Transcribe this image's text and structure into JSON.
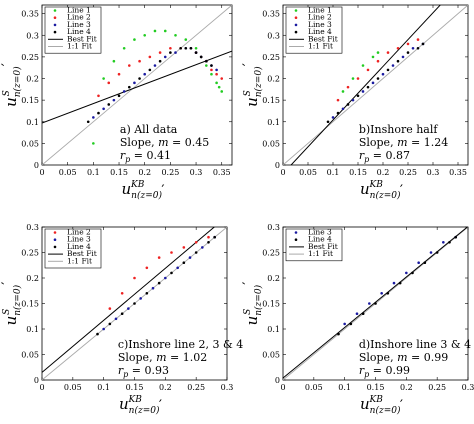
{
  "chart_data": [
    {
      "type": "scatter",
      "panel": "a",
      "xlim": [
        0,
        0.37
      ],
      "ylim": [
        0,
        0.37
      ],
      "xticks": [
        "0",
        "0.05",
        "0.1",
        "0.15",
        "0.2",
        "0.25",
        "0.3",
        "0.35"
      ],
      "yticks": [
        "0",
        "0.05",
        "0.1",
        "0.15",
        "0.2",
        "0.25",
        "0.3",
        "0.35"
      ],
      "xlabel": "u_{n(z=0)}^{KB} ′",
      "ylabel": "u_{n(z=0)}^{S} ′",
      "annotation": [
        "a) All data",
        "Slope, m = 0.45",
        "r_p = 0.41"
      ],
      "legend": [
        {
          "label": "Line 1",
          "kind": "marker",
          "color": "#22cc22"
        },
        {
          "label": "Line 2",
          "kind": "marker",
          "color": "#ee2222"
        },
        {
          "label": "Line 3",
          "kind": "marker",
          "color": "#1a1aa0"
        },
        {
          "label": "Line 4",
          "kind": "marker",
          "color": "#000000"
        },
        {
          "label": "Best Fit",
          "kind": "line",
          "color": "#000000"
        },
        {
          "label": "1:1 Fit",
          "kind": "line",
          "color": "#aaaaaa"
        }
      ],
      "best_fit": {
        "slope": 0.45,
        "intercept": 0.097
      },
      "series": [
        {
          "name": "Line 1",
          "color": "#22cc22",
          "x": [
            0.12,
            0.14,
            0.16,
            0.18,
            0.2,
            0.22,
            0.24,
            0.26,
            0.28,
            0.3,
            0.31,
            0.32,
            0.33,
            0.34,
            0.345,
            0.35,
            0.1
          ],
          "y": [
            0.2,
            0.24,
            0.27,
            0.29,
            0.3,
            0.31,
            0.31,
            0.3,
            0.29,
            0.27,
            0.25,
            0.23,
            0.21,
            0.19,
            0.18,
            0.17,
            0.05
          ]
        },
        {
          "name": "Line 2",
          "color": "#ee2222",
          "x": [
            0.11,
            0.13,
            0.15,
            0.17,
            0.19,
            0.21,
            0.23,
            0.25,
            0.27,
            0.29,
            0.3,
            0.31,
            0.32,
            0.33,
            0.34,
            0.35
          ],
          "y": [
            0.16,
            0.19,
            0.21,
            0.23,
            0.24,
            0.25,
            0.26,
            0.27,
            0.27,
            0.27,
            0.26,
            0.25,
            0.24,
            0.22,
            0.21,
            0.2
          ]
        },
        {
          "name": "Line 3",
          "color": "#1a1aa0",
          "x": [
            0.1,
            0.12,
            0.14,
            0.16,
            0.18,
            0.2,
            0.22,
            0.24,
            0.26,
            0.28,
            0.29,
            0.3,
            0.31,
            0.32,
            0.33,
            0.34
          ],
          "y": [
            0.11,
            0.13,
            0.15,
            0.17,
            0.19,
            0.21,
            0.23,
            0.25,
            0.26,
            0.27,
            0.27,
            0.26,
            0.25,
            0.24,
            0.23,
            0.22
          ]
        },
        {
          "name": "Line 4",
          "color": "#000000",
          "x": [
            0.09,
            0.11,
            0.13,
            0.15,
            0.17,
            0.19,
            0.21,
            0.23,
            0.25,
            0.27,
            0.28,
            0.29,
            0.3,
            0.31,
            0.32,
            0.33
          ],
          "y": [
            0.1,
            0.12,
            0.14,
            0.16,
            0.18,
            0.2,
            0.22,
            0.24,
            0.26,
            0.27,
            0.27,
            0.27,
            0.26,
            0.25,
            0.24,
            0.23
          ]
        }
      ]
    },
    {
      "type": "scatter",
      "panel": "b",
      "xlim": [
        0,
        0.37
      ],
      "ylim": [
        0,
        0.37
      ],
      "xticks": [
        "0",
        "0.05",
        "0.1",
        "0.15",
        "0.2",
        "0.25",
        "0.3",
        "0.35"
      ],
      "yticks": [
        "0",
        "0.05",
        "0.1",
        "0.15",
        "0.2",
        "0.25",
        "0.3",
        "0.35"
      ],
      "xlabel": "u_{n(z=0)}^{KB} ′",
      "ylabel": "u_{n(z=0)}^{S} ′",
      "annotation": [
        "b)Inshore half",
        "Slope, m = 1.24",
        "r_p = 0.87"
      ],
      "legend": [
        {
          "label": "Line 1",
          "kind": "marker",
          "color": "#22cc22"
        },
        {
          "label": "Line 2",
          "kind": "marker",
          "color": "#ee2222"
        },
        {
          "label": "Line 3",
          "kind": "marker",
          "color": "#1a1aa0"
        },
        {
          "label": "Line 4",
          "kind": "marker",
          "color": "#000000"
        },
        {
          "label": "Best Fit",
          "kind": "line",
          "color": "#000000"
        },
        {
          "label": "1:1 Fit",
          "kind": "line",
          "color": "#aaaaaa"
        }
      ],
      "best_fit": {
        "slope": 1.24,
        "intercept": -0.02
      },
      "series": [
        {
          "name": "Line 1",
          "color": "#22cc22",
          "x": [
            0.12,
            0.14,
            0.16,
            0.18,
            0.19
          ],
          "y": [
            0.17,
            0.2,
            0.23,
            0.25,
            0.26
          ]
        },
        {
          "name": "Line 2",
          "color": "#ee2222",
          "x": [
            0.11,
            0.13,
            0.15,
            0.17,
            0.19,
            0.21,
            0.23,
            0.25,
            0.27
          ],
          "y": [
            0.15,
            0.18,
            0.2,
            0.22,
            0.24,
            0.26,
            0.27,
            0.28,
            0.29
          ]
        },
        {
          "name": "Line 3",
          "color": "#1a1aa0",
          "x": [
            0.1,
            0.12,
            0.14,
            0.16,
            0.18,
            0.2,
            0.22,
            0.24,
            0.26,
            0.28
          ],
          "y": [
            0.11,
            0.13,
            0.15,
            0.17,
            0.19,
            0.21,
            0.23,
            0.25,
            0.27,
            0.28
          ]
        },
        {
          "name": "Line 4",
          "color": "#000000",
          "x": [
            0.09,
            0.11,
            0.13,
            0.15,
            0.17,
            0.19,
            0.21,
            0.23,
            0.25,
            0.27,
            0.28
          ],
          "y": [
            0.1,
            0.12,
            0.14,
            0.16,
            0.18,
            0.2,
            0.22,
            0.24,
            0.26,
            0.27,
            0.28
          ]
        }
      ]
    },
    {
      "type": "scatter",
      "panel": "c",
      "xlim": [
        0,
        0.3
      ],
      "ylim": [
        0,
        0.3
      ],
      "xticks": [
        "0",
        "0.05",
        "0.1",
        "0.15",
        "0.2",
        "0.25",
        "0.3"
      ],
      "yticks": [
        "0",
        "0.05",
        "0.1",
        "0.15",
        "0.2",
        "0.25",
        "0.3"
      ],
      "xlabel": "u_{n(z=0)}^{KB} ′",
      "ylabel": "u_{n(z=0)}^{S} ′",
      "annotation": [
        "c)Inshore line 2, 3 & 4",
        "Slope, m = 1.02",
        "r_p = 0.93"
      ],
      "legend": [
        {
          "label": "Line 2",
          "kind": "marker",
          "color": "#ee2222"
        },
        {
          "label": "Line 3",
          "kind": "marker",
          "color": "#1a1aa0"
        },
        {
          "label": "Line 4",
          "kind": "marker",
          "color": "#000000"
        },
        {
          "label": "Best Fit",
          "kind": "line",
          "color": "#000000"
        },
        {
          "label": "1:1 Fit",
          "kind": "line",
          "color": "#aaaaaa"
        }
      ],
      "best_fit": {
        "slope": 1.02,
        "intercept": 0.015
      },
      "series": [
        {
          "name": "Line 2",
          "color": "#ee2222",
          "x": [
            0.11,
            0.13,
            0.15,
            0.17,
            0.19,
            0.21,
            0.23,
            0.25,
            0.27
          ],
          "y": [
            0.14,
            0.17,
            0.2,
            0.22,
            0.24,
            0.25,
            0.26,
            0.27,
            0.28
          ]
        },
        {
          "name": "Line 3",
          "color": "#1a1aa0",
          "x": [
            0.1,
            0.12,
            0.14,
            0.16,
            0.18,
            0.2,
            0.22,
            0.24,
            0.26,
            0.28
          ],
          "y": [
            0.1,
            0.12,
            0.14,
            0.16,
            0.18,
            0.2,
            0.22,
            0.24,
            0.26,
            0.28
          ]
        },
        {
          "name": "Line 4",
          "color": "#000000",
          "x": [
            0.09,
            0.11,
            0.13,
            0.15,
            0.17,
            0.19,
            0.21,
            0.23,
            0.25,
            0.27,
            0.28
          ],
          "y": [
            0.09,
            0.11,
            0.13,
            0.15,
            0.17,
            0.19,
            0.21,
            0.23,
            0.25,
            0.27,
            0.28
          ]
        }
      ]
    },
    {
      "type": "scatter",
      "panel": "d",
      "xlim": [
        0,
        0.3
      ],
      "ylim": [
        0,
        0.3
      ],
      "xticks": [
        "0",
        "0.05",
        "0.1",
        "0.15",
        "0.2",
        "0.25",
        "0.3"
      ],
      "yticks": [
        "0",
        "0.05",
        "0.1",
        "0.15",
        "0.2",
        "0.25",
        "0.3"
      ],
      "xlabel": "u_{n(z=0)}^{KB} ′",
      "ylabel": "u_{n(z=0)}^{S} ′",
      "annotation": [
        "d)Inshore line 3 & 4",
        "Slope, m = 0.99",
        "r_p = 0.99"
      ],
      "legend": [
        {
          "label": "Line 3",
          "kind": "marker",
          "color": "#1a1aa0"
        },
        {
          "label": "Line 4",
          "kind": "marker",
          "color": "#000000"
        },
        {
          "label": "Best Fit",
          "kind": "line",
          "color": "#000000"
        },
        {
          "label": "1:1 Fit",
          "kind": "line",
          "color": "#aaaaaa"
        }
      ],
      "best_fit": {
        "slope": 0.99,
        "intercept": 0.004
      },
      "series": [
        {
          "name": "Line 3",
          "color": "#1a1aa0",
          "x": [
            0.1,
            0.12,
            0.14,
            0.16,
            0.18,
            0.2,
            0.22,
            0.24,
            0.26,
            0.28
          ],
          "y": [
            0.11,
            0.13,
            0.15,
            0.17,
            0.19,
            0.21,
            0.23,
            0.25,
            0.27,
            0.28
          ]
        },
        {
          "name": "Line 4",
          "color": "#000000",
          "x": [
            0.09,
            0.11,
            0.13,
            0.15,
            0.17,
            0.19,
            0.21,
            0.23,
            0.25,
            0.27,
            0.28
          ],
          "y": [
            0.09,
            0.11,
            0.13,
            0.15,
            0.17,
            0.19,
            0.21,
            0.23,
            0.25,
            0.27,
            0.28
          ]
        }
      ]
    }
  ]
}
